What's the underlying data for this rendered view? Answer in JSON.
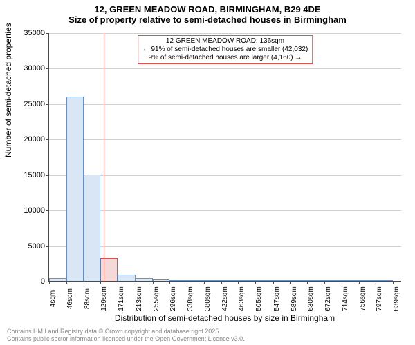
{
  "title": "12, GREEN MEADOW ROAD, BIRMINGHAM, B29 4DE",
  "subtitle": "Size of property relative to semi-detached houses in Birmingham",
  "ylabel": "Number of semi-detached properties",
  "xlabel": "Distribution of semi-detached houses by size in Birmingham",
  "title_fontsize": 13,
  "label_fontsize": 12,
  "tick_fontsize": 11,
  "background_color": "#ffffff",
  "grid_color": "#d0d0d0",
  "axis_color": "#4a4a4a",
  "text_color": "#000000",
  "chart": {
    "type": "histogram",
    "x_min": 4,
    "x_max": 860,
    "ylim": [
      0,
      35000
    ],
    "ytick_step": 5000,
    "xticks": [
      4,
      46,
      88,
      129,
      171,
      213,
      255,
      296,
      338,
      380,
      422,
      463,
      505,
      547,
      589,
      630,
      672,
      714,
      756,
      797,
      839
    ],
    "xtick_unit": "sqm",
    "bar_color_fill": "#d9e6f5",
    "bar_color_stroke": "#6a8fbf",
    "bars": [
      {
        "x0": 4,
        "x1": 46,
        "y": 400
      },
      {
        "x0": 46,
        "x1": 88,
        "y": 26000
      },
      {
        "x0": 88,
        "x1": 129,
        "y": 15000
      },
      {
        "x0": 129,
        "x1": 171,
        "y": 3200
      },
      {
        "x0": 171,
        "x1": 213,
        "y": 900
      },
      {
        "x0": 213,
        "x1": 255,
        "y": 350
      },
      {
        "x0": 255,
        "x1": 296,
        "y": 180
      },
      {
        "x0": 296,
        "x1": 338,
        "y": 120
      },
      {
        "x0": 338,
        "x1": 380,
        "y": 80
      },
      {
        "x0": 380,
        "x1": 422,
        "y": 50
      },
      {
        "x0": 422,
        "x1": 463,
        "y": 30
      },
      {
        "x0": 463,
        "x1": 505,
        "y": 20
      },
      {
        "x0": 505,
        "x1": 547,
        "y": 15
      },
      {
        "x0": 547,
        "x1": 589,
        "y": 10
      },
      {
        "x0": 589,
        "x1": 630,
        "y": 10
      },
      {
        "x0": 630,
        "x1": 672,
        "y": 5
      },
      {
        "x0": 672,
        "x1": 714,
        "y": 5
      },
      {
        "x0": 714,
        "x1": 756,
        "y": 5
      },
      {
        "x0": 756,
        "x1": 797,
        "y": 5
      },
      {
        "x0": 797,
        "x1": 839,
        "y": 5
      }
    ],
    "reference_line": {
      "x": 136,
      "color": "#d9534f"
    },
    "highlight_bar_index": 3
  },
  "annotation": {
    "line1": "12 GREEN MEADOW ROAD: 136sqm",
    "line2": "← 91% of semi-detached houses are smaller (42,032)",
    "line3": "9% of semi-detached houses are larger (4,160) →",
    "border_color": "#d9534f",
    "fontsize": 10
  },
  "footer": {
    "line1": "Contains HM Land Registry data © Crown copyright and database right 2025.",
    "line2": "Contains public sector information licensed under the Open Government Licence v3.0.",
    "color": "#888888",
    "fontsize": 9
  }
}
